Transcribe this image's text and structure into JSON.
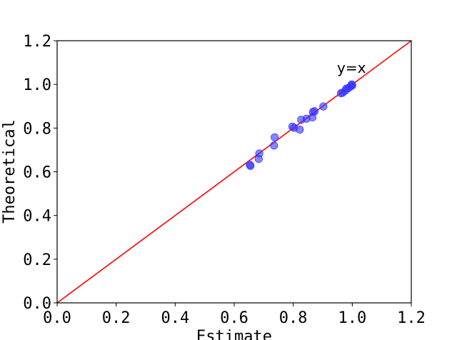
{
  "chart_data": {
    "type": "scatter",
    "title": "",
    "xlabel": "Estimate",
    "ylabel": "Theoretical",
    "xlim": [
      0.0,
      1.2
    ],
    "ylim": [
      0.0,
      1.2
    ],
    "xticks": [
      "0.0",
      "0.2",
      "0.4",
      "0.6",
      "0.8",
      "1.0",
      "1.2"
    ],
    "yticks": [
      "0.0",
      "0.2",
      "0.4",
      "0.6",
      "0.8",
      "1.0",
      "1.2"
    ],
    "grid": false,
    "reference_line": {
      "label": "y=x",
      "slope": 1,
      "intercept": 0,
      "color": "#ff0000"
    },
    "point_color": "#3333ff",
    "points": [
      {
        "x": 0.653,
        "y": 0.632
      },
      {
        "x": 0.655,
        "y": 0.627
      },
      {
        "x": 0.683,
        "y": 0.659
      },
      {
        "x": 0.685,
        "y": 0.684
      },
      {
        "x": 0.735,
        "y": 0.72
      },
      {
        "x": 0.737,
        "y": 0.758
      },
      {
        "x": 0.797,
        "y": 0.807
      },
      {
        "x": 0.803,
        "y": 0.801
      },
      {
        "x": 0.822,
        "y": 0.793
      },
      {
        "x": 0.827,
        "y": 0.838
      },
      {
        "x": 0.845,
        "y": 0.843
      },
      {
        "x": 0.865,
        "y": 0.849
      },
      {
        "x": 0.867,
        "y": 0.874
      },
      {
        "x": 0.872,
        "y": 0.877
      },
      {
        "x": 0.902,
        "y": 0.899
      },
      {
        "x": 0.962,
        "y": 0.96
      },
      {
        "x": 0.967,
        "y": 0.962
      },
      {
        "x": 0.977,
        "y": 0.972
      },
      {
        "x": 0.98,
        "y": 0.981
      },
      {
        "x": 0.987,
        "y": 0.983
      },
      {
        "x": 0.995,
        "y": 0.991
      },
      {
        "x": 1.0,
        "y": 0.996
      },
      {
        "x": 0.998,
        "y": 1.0
      }
    ]
  }
}
